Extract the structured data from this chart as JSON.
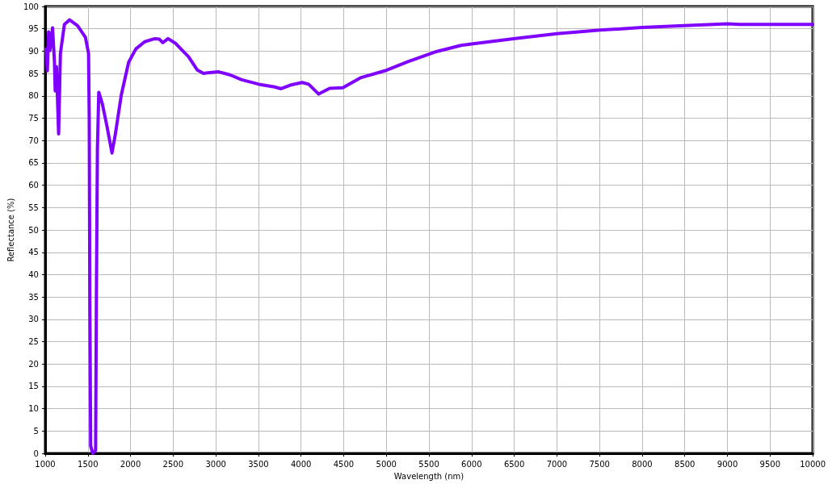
{
  "chart_data": {
    "type": "line",
    "xlabel": "Wavelength (nm)",
    "ylabel": "Reflectance (%)",
    "x": [
      1009,
      1025,
      1040,
      1055,
      1086,
      1108,
      1117,
      1132,
      1157,
      1178,
      1225,
      1286,
      1379,
      1471,
      1508,
      1516,
      1523,
      1533,
      1557,
      1591,
      1600,
      1612,
      1628,
      1670,
      1721,
      1783,
      1823,
      1892,
      1978,
      2063,
      2166,
      2285,
      2337,
      2378,
      2440,
      2525,
      2611,
      2679,
      2782,
      2857,
      2885,
      3027,
      3165,
      3304,
      3504,
      3689,
      3766,
      3874,
      4012,
      4089,
      4206,
      4336,
      4490,
      4705,
      4982,
      5260,
      5567,
      5876,
      6000,
      6492,
      7000,
      7508,
      8001,
      8494,
      9002,
      9140,
      10000
    ],
    "series": [
      {
        "color": "#8000ff",
        "values": [
          90.5,
          85.6,
          94.3,
          90.1,
          95.2,
          87.7,
          81.1,
          86.5,
          71.5,
          89.5,
          96.0,
          97.0,
          95.7,
          93.1,
          89.5,
          74.9,
          35,
          1.7,
          0,
          0.7,
          35,
          68.2,
          80.8,
          78.2,
          73.5,
          67.2,
          71.5,
          80.2,
          87.5,
          90.5,
          92.1,
          92.8,
          92.7,
          91.9,
          92.8,
          91.8,
          90.1,
          88.8,
          85.8,
          85.0,
          85.1,
          85.4,
          84.7,
          83.6,
          82.6,
          82.0,
          81.6,
          82.4,
          83.0,
          82.6,
          80.4,
          81.7,
          81.8,
          84.1,
          85.6,
          87.7,
          89.8,
          91.3,
          91.6,
          92.8,
          93.9,
          94.7,
          95.3,
          95.7,
          96.1,
          96.0,
          96.0
        ]
      }
    ],
    "xlim": [
      1000,
      10000
    ],
    "xticks": [
      1000,
      1500,
      2000,
      2500,
      3000,
      3500,
      4000,
      4500,
      5000,
      5500,
      6000,
      6500,
      7000,
      7500,
      8000,
      8500,
      9000,
      9500,
      10000
    ],
    "ylim": [
      0,
      100
    ],
    "yticks": [
      0,
      5,
      10,
      15,
      20,
      25,
      30,
      35,
      40,
      45,
      50,
      55,
      60,
      65,
      70,
      75,
      80,
      85,
      90,
      95,
      100
    ],
    "grid": true,
    "marker": "none",
    "line_style": "solid"
  }
}
